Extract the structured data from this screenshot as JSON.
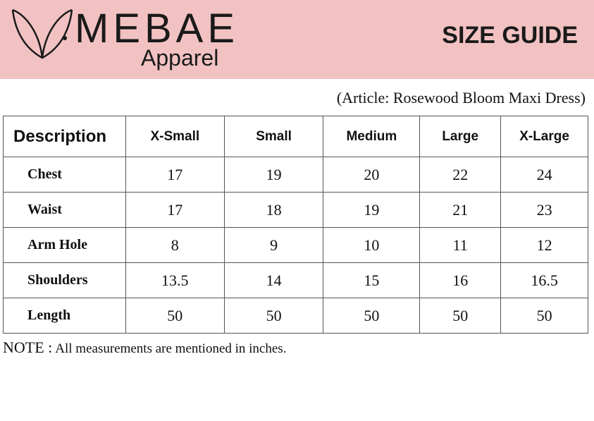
{
  "brand": {
    "name": "MEBAE",
    "sub": "Apparel"
  },
  "header": {
    "title": "SIZE GUIDE"
  },
  "article": "(Article: Rosewood Bloom Maxi Dress)",
  "table": {
    "headers": [
      "Description",
      "X-Small",
      "Small",
      "Medium",
      "Large",
      "X-Large"
    ],
    "rows": [
      {
        "label": "Chest",
        "values": [
          "17",
          "19",
          "20",
          "22",
          "24"
        ]
      },
      {
        "label": "Waist",
        "values": [
          "17",
          "18",
          "19",
          "21",
          "23"
        ]
      },
      {
        "label": "Arm Hole",
        "values": [
          "8",
          "9",
          "10",
          "11",
          "12"
        ]
      },
      {
        "label": "Shoulders",
        "values": [
          "13.5",
          "14",
          "15",
          "16",
          "16.5"
        ]
      },
      {
        "label": "Length",
        "values": [
          "50",
          "50",
          "50",
          "50",
          "50"
        ]
      }
    ]
  },
  "note": {
    "prefix": "NOTE :",
    "text": "All measurements are mentioned in inches."
  },
  "colors": {
    "header_bg": "#f2c2c3",
    "text": "#1a1a1a"
  }
}
